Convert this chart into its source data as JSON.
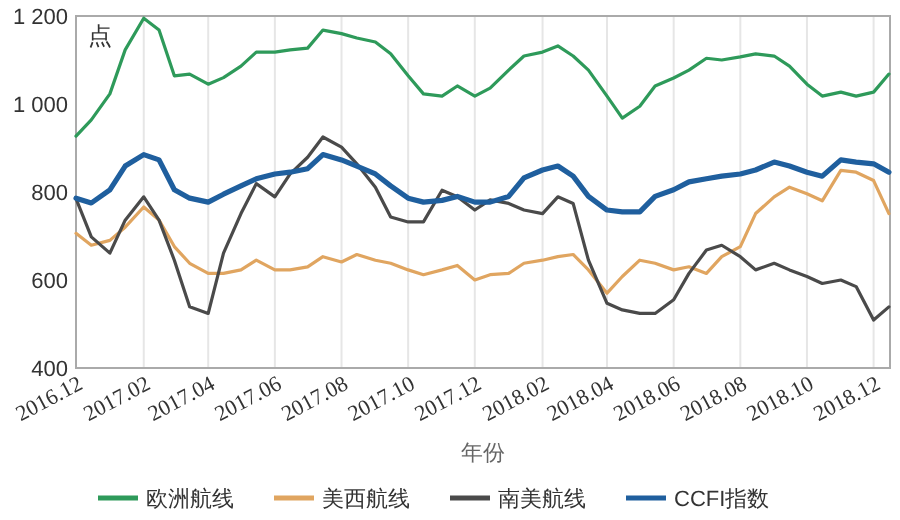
{
  "chart_data": {
    "type": "line",
    "ylabel": "点",
    "xlabel": "年份",
    "x": [
      "2016-12-01",
      "2016-12-15",
      "2017-01-01",
      "2017-01-15",
      "2017-02-01",
      "2017-02-15",
      "2017-03-01",
      "2017-03-15",
      "2017-04-01",
      "2017-04-15",
      "2017-05-01",
      "2017-05-15",
      "2017-06-01",
      "2017-06-15",
      "2017-07-01",
      "2017-07-15",
      "2017-08-01",
      "2017-08-15",
      "2017-09-01",
      "2017-09-15",
      "2017-10-01",
      "2017-10-15",
      "2017-11-01",
      "2017-11-15",
      "2017-12-01",
      "2017-12-15",
      "2018-01-01",
      "2018-01-15",
      "2018-02-01",
      "2018-02-15",
      "2018-03-01",
      "2018-03-15",
      "2018-04-01",
      "2018-04-15",
      "2018-05-01",
      "2018-05-15",
      "2018-06-01",
      "2018-06-15",
      "2018-07-01",
      "2018-07-15",
      "2018-08-01",
      "2018-08-15",
      "2018-09-01",
      "2018-09-15",
      "2018-10-01",
      "2018-10-15",
      "2018-11-01",
      "2018-11-15",
      "2018-12-01",
      "2018-12-15"
    ],
    "xlim": [
      "2016-12-01",
      "2018-12-16"
    ],
    "xticks": [
      {
        "value": "2016-12",
        "label": "2016.12"
      },
      {
        "value": "2017-02",
        "label": "2017.02"
      },
      {
        "value": "2017-04",
        "label": "2017.04"
      },
      {
        "value": "2017-06",
        "label": "2017.06"
      },
      {
        "value": "2017-08",
        "label": "2017.08"
      },
      {
        "value": "2017-10",
        "label": "2017.10"
      },
      {
        "value": "2017-12",
        "label": "2017.12"
      },
      {
        "value": "2018-02",
        "label": "2018.02"
      },
      {
        "value": "2018-04",
        "label": "2018.04"
      },
      {
        "value": "2018-06",
        "label": "2018.06"
      },
      {
        "value": "2018-08",
        "label": "2018.08"
      },
      {
        "value": "2018-10",
        "label": "2018.10"
      },
      {
        "value": "2018-12",
        "label": "2018.12"
      }
    ],
    "ylim": [
      400,
      1200
    ],
    "yticks": [
      400,
      600,
      800,
      {
        "value": 1000,
        "label": "1 000"
      },
      {
        "value": 1200,
        "label": "1 200"
      }
    ],
    "grid": "x",
    "legend": "bottom",
    "line_style": "solid",
    "series": [
      {
        "name": "欧洲航线",
        "color": "#2e9a5a",
        "values": [
          927,
          964,
          1023,
          1123,
          1195,
          1168,
          1064,
          1068,
          1045,
          1060,
          1086,
          1118,
          1118,
          1123,
          1127,
          1168,
          1160,
          1150,
          1141,
          1114,
          1064,
          1023,
          1018,
          1041,
          1018,
          1036,
          1077,
          1109,
          1118,
          1132,
          1109,
          1077,
          1018,
          968,
          995,
          1041,
          1059,
          1077,
          1104,
          1100,
          1107,
          1114,
          1109,
          1086,
          1045,
          1018,
          1027,
          1018,
          1027,
          1068
        ]
      },
      {
        "name": "美西航线",
        "color": "#e0a560",
        "values": [
          706,
          679,
          690,
          720,
          766,
          736,
          676,
          638,
          615,
          615,
          623,
          645,
          623,
          623,
          630,
          653,
          641,
          658,
          645,
          638,
          623,
          612,
          623,
          633,
          600,
          612,
          615,
          638,
          645,
          653,
          658,
          623,
          570,
          608,
          645,
          638,
          623,
          630,
          615,
          653,
          676,
          751,
          789,
          811,
          796,
          780,
          849,
          845,
          826,
          751
        ]
      },
      {
        "name": "南美航线",
        "color": "#4a4a4a",
        "values": [
          785,
          698,
          661,
          736,
          789,
          736,
          645,
          539,
          524,
          661,
          751,
          819,
          789,
          841,
          879,
          925,
          902,
          864,
          811,
          743,
          732,
          732,
          804,
          789,
          759,
          782,
          774,
          759,
          751,
          789,
          774,
          645,
          547,
          532,
          524,
          524,
          555,
          615,
          668,
          679,
          653,
          623,
          638,
          623,
          608,
          592,
          600,
          585,
          509,
          539
        ]
      },
      {
        "name": "CCFI指数",
        "color": "#1f5f9e",
        "values": [
          786,
          775,
          805,
          859,
          885,
          873,
          805,
          786,
          777,
          795,
          814,
          830,
          841,
          845,
          853,
          885,
          873,
          859,
          841,
          814,
          786,
          777,
          781,
          790,
          777,
          777,
          790,
          832,
          850,
          859,
          836,
          790,
          759,
          755,
          755,
          790,
          805,
          823,
          830,
          836,
          841,
          850,
          868,
          859,
          845,
          836,
          873,
          868,
          864,
          845
        ]
      }
    ]
  }
}
